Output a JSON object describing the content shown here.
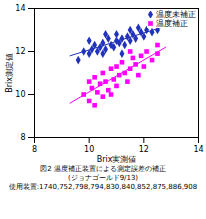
{
  "chart_data": {
    "type": "scatter",
    "title": "図2 温度補正装置による測定誤差の補正",
    "subtitle": "(ジョナゴールド9/13)",
    "caption": "使用装置:1740,752,798,794,830,840,852,875,886,908",
    "x_label": "Brix実測値",
    "y_label": "Brix測定値",
    "xlim": [
      8,
      14
    ],
    "xticks": [
      8,
      10,
      12,
      14
    ],
    "ylim": [
      8,
      14
    ],
    "yticks": [
      8,
      10,
      12,
      14
    ],
    "grid": false,
    "legend": "top-right",
    "series": [
      {
        "name": "温度未補正",
        "color": "#2233bb",
        "marker": "diamond",
        "x": [
          9.8,
          10.0,
          10.1,
          10.2,
          10.3,
          10.4,
          10.5,
          10.5,
          10.6,
          10.7,
          10.8,
          10.9,
          11.0,
          11.0,
          11.1,
          11.2,
          11.3,
          11.4,
          11.5,
          11.5,
          11.6,
          11.7,
          11.8,
          11.9,
          12.0,
          12.1,
          12.3,
          12.5,
          10.0,
          10.6,
          11.2,
          9.6
        ],
        "values": [
          12.0,
          11.9,
          12.1,
          12.3,
          12.0,
          12.2,
          12.4,
          11.9,
          12.1,
          12.6,
          12.3,
          12.2,
          12.5,
          12.8,
          12.4,
          12.6,
          12.3,
          12.7,
          12.5,
          13.0,
          12.8,
          12.6,
          13.1,
          12.9,
          12.7,
          13.0,
          12.9,
          13.0,
          12.5,
          12.8,
          11.9,
          11.6
        ],
        "trend_x": [
          9.3,
          12.6
        ],
        "trend_values": [
          11.8,
          13.1
        ]
      },
      {
        "name": "温度補正",
        "color": "#ff00ff",
        "marker": "square",
        "x": [
          9.8,
          10.0,
          10.0,
          10.1,
          10.2,
          10.3,
          10.4,
          10.5,
          10.5,
          10.6,
          10.7,
          10.8,
          10.9,
          11.0,
          11.0,
          11.1,
          11.2,
          11.3,
          11.4,
          11.5,
          11.6,
          11.7,
          11.8,
          11.9,
          12.0,
          12.1,
          12.3,
          12.5,
          10.2,
          11.5,
          10.8,
          12.5
        ],
        "values": [
          10.0,
          9.7,
          10.6,
          10.3,
          10.8,
          10.1,
          10.5,
          9.9,
          11.0,
          10.6,
          10.2,
          11.2,
          10.7,
          10.4,
          11.3,
          10.9,
          11.5,
          11.0,
          10.6,
          11.2,
          11.7,
          11.4,
          10.9,
          11.8,
          11.3,
          12.0,
          11.6,
          11.9,
          9.5,
          12.0,
          10.0,
          12.3
        ],
        "trend_x": [
          9.3,
          12.8
        ],
        "trend_values": [
          9.6,
          12.2
        ]
      }
    ]
  }
}
